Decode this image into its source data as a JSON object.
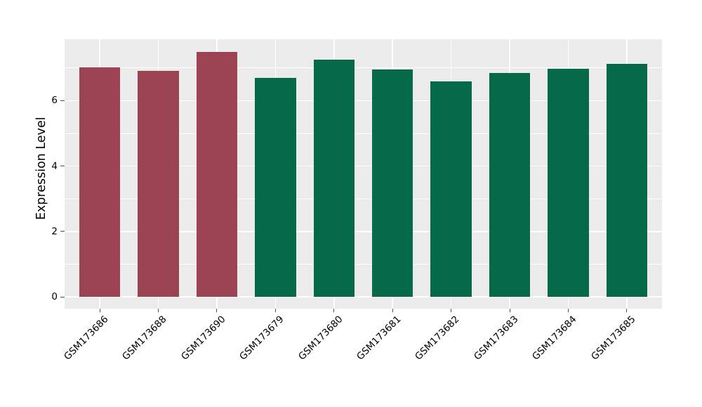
{
  "chart_data": {
    "type": "bar",
    "title": "",
    "xlabel": "",
    "ylabel": "Expression Level",
    "categories": [
      "GSM173686",
      "GSM173688",
      "GSM173690",
      "GSM173679",
      "GSM173680",
      "GSM173681",
      "GSM173682",
      "GSM173683",
      "GSM173684",
      "GSM173685"
    ],
    "values": [
      7.02,
      6.91,
      7.49,
      6.69,
      7.26,
      6.96,
      6.59,
      6.85,
      6.97,
      7.12
    ],
    "groups": [
      "group-red",
      "group-red",
      "group-red",
      "group-green",
      "group-green",
      "group-green",
      "group-green",
      "group-green",
      "group-green",
      "group-green"
    ],
    "group_colors": {
      "group-red": "#9b4253",
      "group-green": "#066a4a"
    },
    "yticks": [
      0,
      2,
      4,
      6
    ],
    "yminor_ticks": [
      1,
      3,
      5,
      7
    ],
    "ylim": [
      -0.37,
      7.88
    ],
    "grid": "on",
    "legend": "none",
    "colors": {
      "plot_background": "#ebebeb",
      "figure_background": "#ffffff",
      "gridline": "#ffffff",
      "tick_mark": "#4d4d4d",
      "text": "#000000"
    }
  }
}
